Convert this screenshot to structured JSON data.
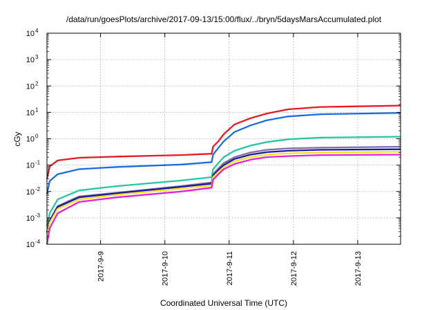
{
  "chart_data": {
    "type": "line",
    "title": "/data/run/goesPlots/archive/2017-09-13/15:00/flux/../bryn/5daysMarsAccumulated.plot",
    "xlabel": "Coordinated Universal Time (UTC)",
    "ylabel": "cGy",
    "y_scale": "log",
    "ylim": [
      0.0001,
      10000
    ],
    "xlim": [
      "2017-09-08T04:00",
      "2017-09-13T16:00"
    ],
    "x_ticks": [
      "2017-9-9",
      "2017-9-10",
      "2017-9-11",
      "2017-9-12",
      "2017-9-13"
    ],
    "x_tick_dates": [
      "2017-09-09T00:00",
      "2017-09-10T00:00",
      "2017-09-11T00:00",
      "2017-09-12T00:00",
      "2017-09-13T00:00"
    ],
    "y_ticks": [
      {
        "base": "10",
        "exp": "-4",
        "value": 0.0001
      },
      {
        "base": "10",
        "exp": "-3",
        "value": 0.001
      },
      {
        "base": "10",
        "exp": "-2",
        "value": 0.01
      },
      {
        "base": "10",
        "exp": "-1",
        "value": 0.1
      },
      {
        "base": "10",
        "exp": "0",
        "value": 1
      },
      {
        "base": "10",
        "exp": "1",
        "value": 10
      },
      {
        "base": "10",
        "exp": "2",
        "value": 100
      },
      {
        "base": "10",
        "exp": "3",
        "value": 1000
      },
      {
        "base": "10",
        "exp": "4",
        "value": 10000
      }
    ],
    "grid": true,
    "series": [
      {
        "color": "#e8191e",
        "points": [
          [
            "2017-09-08T04:00",
            0.03
          ],
          [
            "2017-09-08T05:00",
            0.09
          ],
          [
            "2017-09-08T08:00",
            0.15
          ],
          [
            "2017-09-08T16:00",
            0.19
          ],
          [
            "2017-09-09T06:00",
            0.21
          ],
          [
            "2017-09-10T06:00",
            0.24
          ],
          [
            "2017-09-10T17:30",
            0.27
          ],
          [
            "2017-09-10T18:00",
            0.5
          ],
          [
            "2017-09-10T20:00",
            0.8
          ],
          [
            "2017-09-10T22:00",
            1.5
          ],
          [
            "2017-09-11T02:00",
            3.5
          ],
          [
            "2017-09-11T08:00",
            6
          ],
          [
            "2017-09-11T14:00",
            9
          ],
          [
            "2017-09-11T22:00",
            13
          ],
          [
            "2017-09-12T10:00",
            16
          ],
          [
            "2017-09-13T16:00",
            18
          ]
        ]
      },
      {
        "color": "#1a6de0",
        "points": [
          [
            "2017-09-08T04:00",
            0.008
          ],
          [
            "2017-09-08T05:00",
            0.025
          ],
          [
            "2017-09-08T08:00",
            0.045
          ],
          [
            "2017-09-08T16:00",
            0.07
          ],
          [
            "2017-09-09T06:00",
            0.085
          ],
          [
            "2017-09-10T06:00",
            0.105
          ],
          [
            "2017-09-10T17:30",
            0.13
          ],
          [
            "2017-09-10T18:00",
            0.25
          ],
          [
            "2017-09-10T20:00",
            0.45
          ],
          [
            "2017-09-10T22:00",
            0.8
          ],
          [
            "2017-09-11T02:00",
            1.8
          ],
          [
            "2017-09-11T08:00",
            3.2
          ],
          [
            "2017-09-11T14:00",
            5
          ],
          [
            "2017-09-11T22:00",
            7
          ],
          [
            "2017-09-12T10:00",
            8.5
          ],
          [
            "2017-09-13T16:00",
            9.5
          ]
        ]
      },
      {
        "color": "#22c8a3",
        "points": [
          [
            "2017-09-08T04:00",
            0.0005
          ],
          [
            "2017-09-08T05:00",
            0.0015
          ],
          [
            "2017-09-08T08:00",
            0.005
          ],
          [
            "2017-09-08T16:00",
            0.011
          ],
          [
            "2017-09-09T06:00",
            0.016
          ],
          [
            "2017-09-10T06:00",
            0.026
          ],
          [
            "2017-09-10T17:30",
            0.035
          ],
          [
            "2017-09-10T18:00",
            0.07
          ],
          [
            "2017-09-10T20:00",
            0.12
          ],
          [
            "2017-09-10T22:00",
            0.2
          ],
          [
            "2017-09-11T02:00",
            0.35
          ],
          [
            "2017-09-11T08:00",
            0.55
          ],
          [
            "2017-09-11T14:00",
            0.75
          ],
          [
            "2017-09-11T22:00",
            0.95
          ],
          [
            "2017-09-12T10:00",
            1.1
          ],
          [
            "2017-09-13T16:00",
            1.2
          ]
        ]
      },
      {
        "color": "#7e6aa8",
        "points": [
          [
            "2017-09-08T04:00",
            0.0003
          ],
          [
            "2017-09-08T05:00",
            0.0008
          ],
          [
            "2017-09-08T08:00",
            0.0028
          ],
          [
            "2017-09-08T16:00",
            0.0065
          ],
          [
            "2017-09-09T06:00",
            0.009
          ],
          [
            "2017-09-10T06:00",
            0.016
          ],
          [
            "2017-09-10T17:30",
            0.022
          ],
          [
            "2017-09-10T18:00",
            0.045
          ],
          [
            "2017-09-10T20:00",
            0.075
          ],
          [
            "2017-09-10T22:00",
            0.12
          ],
          [
            "2017-09-11T02:00",
            0.2
          ],
          [
            "2017-09-11T08:00",
            0.3
          ],
          [
            "2017-09-11T14:00",
            0.38
          ],
          [
            "2017-09-11T22:00",
            0.43
          ],
          [
            "2017-09-12T10:00",
            0.46
          ],
          [
            "2017-09-13T16:00",
            0.5
          ]
        ]
      },
      {
        "color": "#1a1aa0",
        "points": [
          [
            "2017-09-08T04:00",
            0.00028
          ],
          [
            "2017-09-08T05:00",
            0.00075
          ],
          [
            "2017-09-08T08:00",
            0.0026
          ],
          [
            "2017-09-08T16:00",
            0.006
          ],
          [
            "2017-09-09T06:00",
            0.0085
          ],
          [
            "2017-09-10T06:00",
            0.015
          ],
          [
            "2017-09-10T17:30",
            0.02
          ],
          [
            "2017-09-10T18:00",
            0.04
          ],
          [
            "2017-09-10T20:00",
            0.065
          ],
          [
            "2017-09-10T22:00",
            0.1
          ],
          [
            "2017-09-11T02:00",
            0.17
          ],
          [
            "2017-09-11T08:00",
            0.25
          ],
          [
            "2017-09-11T14:00",
            0.31
          ],
          [
            "2017-09-11T22:00",
            0.35
          ],
          [
            "2017-09-12T10:00",
            0.38
          ],
          [
            "2017-09-13T16:00",
            0.4
          ]
        ]
      },
      {
        "color": "#f2e21e",
        "points": [
          [
            "2017-09-08T04:00",
            0.00025
          ],
          [
            "2017-09-08T05:00",
            0.00065
          ],
          [
            "2017-09-08T08:00",
            0.0022
          ],
          [
            "2017-09-08T16:00",
            0.005
          ],
          [
            "2017-09-09T06:00",
            0.0075
          ],
          [
            "2017-09-10T06:00",
            0.013
          ],
          [
            "2017-09-10T17:30",
            0.017
          ],
          [
            "2017-09-10T18:00",
            0.035
          ],
          [
            "2017-09-10T20:00",
            0.055
          ],
          [
            "2017-09-10T22:00",
            0.085
          ],
          [
            "2017-09-11T02:00",
            0.14
          ],
          [
            "2017-09-11T08:00",
            0.2
          ],
          [
            "2017-09-11T14:00",
            0.25
          ],
          [
            "2017-09-11T22:00",
            0.28
          ],
          [
            "2017-09-12T10:00",
            0.3
          ],
          [
            "2017-09-13T16:00",
            0.32
          ]
        ]
      },
      {
        "color": "#e81ee0",
        "points": [
          [
            "2017-09-08T04:00",
            0.0001
          ],
          [
            "2017-09-08T05:00",
            0.0004
          ],
          [
            "2017-09-08T08:00",
            0.0015
          ],
          [
            "2017-09-08T16:00",
            0.004
          ],
          [
            "2017-09-09T06:00",
            0.006
          ],
          [
            "2017-09-10T06:00",
            0.01
          ],
          [
            "2017-09-10T17:30",
            0.014
          ],
          [
            "2017-09-10T18:00",
            0.028
          ],
          [
            "2017-09-10T20:00",
            0.045
          ],
          [
            "2017-09-10T22:00",
            0.07
          ],
          [
            "2017-09-11T02:00",
            0.11
          ],
          [
            "2017-09-11T08:00",
            0.16
          ],
          [
            "2017-09-11T14:00",
            0.2
          ],
          [
            "2017-09-11T22:00",
            0.22
          ],
          [
            "2017-09-12T10:00",
            0.24
          ],
          [
            "2017-09-13T16:00",
            0.25
          ]
        ]
      }
    ]
  }
}
